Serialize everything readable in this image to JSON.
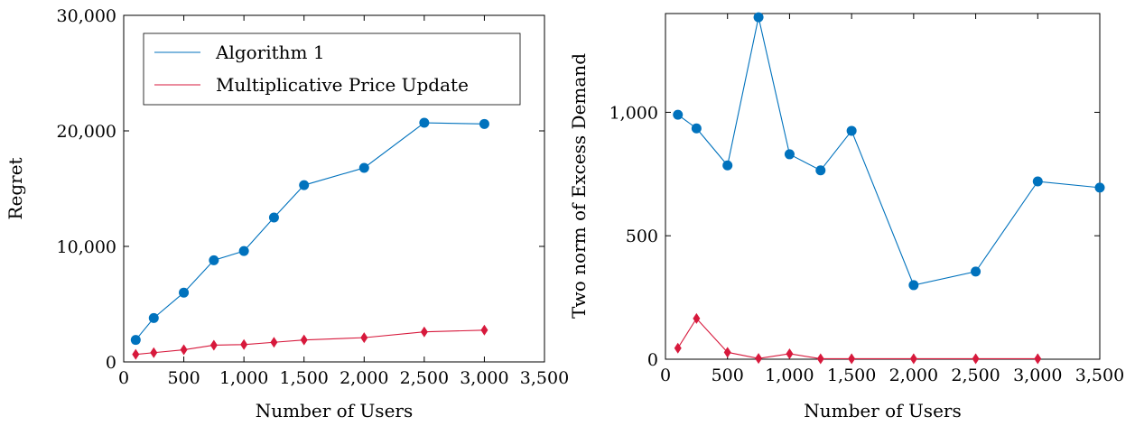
{
  "chart_data": [
    {
      "type": "line",
      "title": "",
      "xlabel": "Number of Users",
      "ylabel": "Regret",
      "xlim": [
        0,
        3500
      ],
      "ylim": [
        0,
        30000
      ],
      "x_ticks": [
        0,
        500,
        1000,
        1500,
        2000,
        2500,
        3000,
        3500
      ],
      "x_tick_labels": [
        "0",
        "500",
        "1,000",
        "1,500",
        "2,000",
        "2,500",
        "3,000",
        "3,500"
      ],
      "y_ticks": [
        0,
        10000,
        20000,
        30000
      ],
      "y_tick_labels": [
        "0",
        "10,000",
        "20,000",
        "30,000"
      ],
      "grid": false,
      "legend": "top-left",
      "x": [
        100,
        250,
        500,
        750,
        1000,
        1250,
        1500,
        2000,
        2500,
        3000
      ],
      "series": [
        {
          "name": "Algorithm 1",
          "color": "#0072bd",
          "marker": "circle",
          "values": [
            1900,
            3800,
            6000,
            8800,
            9600,
            12500,
            15300,
            16800,
            20700,
            20600
          ]
        },
        {
          "name": "Multiplicative Price Update",
          "color": "#d7193c",
          "marker": "diamond",
          "values": [
            650,
            800,
            1050,
            1450,
            1500,
            1700,
            1900,
            2100,
            2600,
            2750
          ]
        }
      ]
    },
    {
      "type": "line",
      "title": "",
      "xlabel": "Number of Users",
      "ylabel": "Two norm of Excess Demand",
      "xlim": [
        0,
        3500
      ],
      "ylim": [
        0,
        1400
      ],
      "x_ticks": [
        0,
        500,
        1000,
        1500,
        2000,
        2500,
        3000,
        3500
      ],
      "x_tick_labels": [
        "0",
        "500",
        "1,000",
        "1,500",
        "2,000",
        "2,500",
        "3,000",
        "3,500"
      ],
      "y_ticks": [
        0,
        500,
        1000
      ],
      "y_tick_labels": [
        "0",
        "500",
        "1,000"
      ],
      "grid": false,
      "x": [
        100,
        250,
        500,
        750,
        1000,
        1250,
        1500,
        2000,
        2500,
        3000,
        3500
      ],
      "series": [
        {
          "color": "#0072bd",
          "marker": "circle",
          "values": [
            990,
            935,
            785,
            1385,
            830,
            765,
            925,
            300,
            355,
            720,
            695
          ]
        },
        {
          "color": "#d7193c",
          "marker": "diamond",
          "values": [
            45,
            165,
            28,
            3,
            22,
            2,
            2,
            2,
            2,
            2,
            null
          ]
        }
      ]
    }
  ]
}
